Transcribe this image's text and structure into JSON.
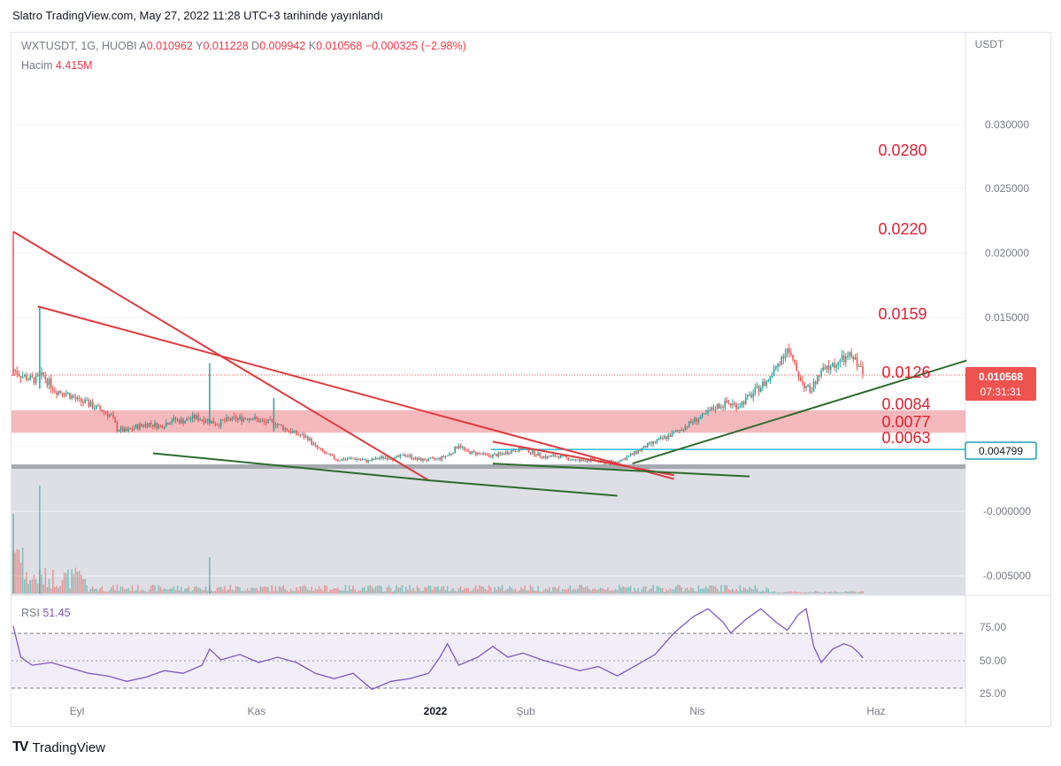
{
  "header": {
    "published_line": "Slatro TradingView.com, May 27, 2022 11:28 UTC+3 tarihinde yayınlandı"
  },
  "legend": {
    "symbol": "WXTUSDT, 1G, HUOBI",
    "open_key": "A",
    "open": "0.010962",
    "high_key": "Y",
    "high": "0.011228",
    "low_key": "D",
    "low": "0.009942",
    "close_key": "K",
    "close": "0.010568",
    "change": "−0.000325 (−2.98%)",
    "volume_label": "Hacim",
    "volume_value": "4.415M"
  },
  "rsi_legend": {
    "label": "RSI",
    "value": "51.45"
  },
  "brand": {
    "name": "TradingView"
  },
  "colors": {
    "up": "#26a69a",
    "down": "#ef5350",
    "trend_red": "#e03a3e",
    "trend_green": "#2e6b2e",
    "rsi": "#7e57c2",
    "zone": "#f0a1a6",
    "cyan_line": "#26b6d0",
    "gray_band": "#a7a9b0",
    "price_tag": "#ef5350",
    "cyan_tag": "#1b9fb5",
    "annotation": "#e0202f"
  },
  "chart_data": [
    {
      "type": "candlestick",
      "title": "WXTUSDT, 1G, HUOBI",
      "ylabel": "USDT",
      "ylim": [
        -0.0065,
        0.035
      ],
      "y_ticks": [
        "0.030000",
        "0.025000",
        "0.020000",
        "0.015000",
        "0.010000",
        "0.005000",
        "-0.000000",
        "-0.005000"
      ],
      "x_ticks": [
        "Eyl",
        "Kas",
        "2022",
        "Şub",
        "Nis",
        "Haz"
      ],
      "last_price_label": "0.010568",
      "countdown_label": "07:31:31",
      "cyan_level_label": "0.004799",
      "cyan_level": 0.004799,
      "support_level": 0.0035,
      "zone": [
        0.0063,
        0.0077
      ],
      "annotations": [
        "0.0280",
        "0.0220",
        "0.0159",
        "0.0126",
        "0.0084",
        "0.0077",
        "0.0063"
      ],
      "close_path": [
        {
          "d": 0,
          "c": 0.011
        },
        {
          "d": 5,
          "c": 0.0105
        },
        {
          "d": 10,
          "c": 0.0102
        },
        {
          "d": 16,
          "c": 0.0105
        },
        {
          "d": 22,
          "c": 0.0094
        },
        {
          "d": 28,
          "c": 0.0092
        },
        {
          "d": 34,
          "c": 0.0086
        },
        {
          "d": 40,
          "c": 0.0083
        },
        {
          "d": 46,
          "c": 0.0079
        },
        {
          "d": 52,
          "c": 0.0074
        },
        {
          "d": 55,
          "c": 0.0064
        },
        {
          "d": 60,
          "c": 0.0062
        },
        {
          "d": 66,
          "c": 0.0066
        },
        {
          "d": 72,
          "c": 0.0068
        },
        {
          "d": 78,
          "c": 0.0066
        },
        {
          "d": 84,
          "c": 0.0071
        },
        {
          "d": 90,
          "c": 0.007
        },
        {
          "d": 96,
          "c": 0.0073
        },
        {
          "d": 102,
          "c": 0.0071
        },
        {
          "d": 108,
          "c": 0.0068
        },
        {
          "d": 114,
          "c": 0.0071
        },
        {
          "d": 120,
          "c": 0.0072
        },
        {
          "d": 126,
          "c": 0.0073
        },
        {
          "d": 132,
          "c": 0.0069
        },
        {
          "d": 138,
          "c": 0.0069
        },
        {
          "d": 144,
          "c": 0.0064
        },
        {
          "d": 150,
          "c": 0.006
        },
        {
          "d": 156,
          "c": 0.0057
        },
        {
          "d": 160,
          "c": 0.005
        },
        {
          "d": 166,
          "c": 0.0044
        },
        {
          "d": 172,
          "c": 0.004
        },
        {
          "d": 180,
          "c": 0.0041
        },
        {
          "d": 188,
          "c": 0.0039
        },
        {
          "d": 196,
          "c": 0.0042
        },
        {
          "d": 202,
          "c": 0.0041
        },
        {
          "d": 208,
          "c": 0.0044
        },
        {
          "d": 214,
          "c": 0.004
        },
        {
          "d": 220,
          "c": 0.004
        },
        {
          "d": 226,
          "c": 0.0041
        },
        {
          "d": 232,
          "c": 0.0045
        },
        {
          "d": 236,
          "c": 0.0052
        },
        {
          "d": 240,
          "c": 0.0046
        },
        {
          "d": 246,
          "c": 0.0045
        },
        {
          "d": 252,
          "c": 0.0043
        },
        {
          "d": 258,
          "c": 0.0044
        },
        {
          "d": 264,
          "c": 0.0047
        },
        {
          "d": 270,
          "c": 0.0049
        },
        {
          "d": 276,
          "c": 0.0045
        },
        {
          "d": 282,
          "c": 0.0042
        },
        {
          "d": 288,
          "c": 0.0043
        },
        {
          "d": 294,
          "c": 0.0041
        },
        {
          "d": 300,
          "c": 0.0039
        },
        {
          "d": 306,
          "c": 0.004
        },
        {
          "d": 312,
          "c": 0.0038
        },
        {
          "d": 318,
          "c": 0.0038
        },
        {
          "d": 324,
          "c": 0.0041
        },
        {
          "d": 330,
          "c": 0.0046
        },
        {
          "d": 336,
          "c": 0.0051
        },
        {
          "d": 342,
          "c": 0.0055
        },
        {
          "d": 348,
          "c": 0.0059
        },
        {
          "d": 354,
          "c": 0.0064
        },
        {
          "d": 360,
          "c": 0.007
        },
        {
          "d": 366,
          "c": 0.0074
        },
        {
          "d": 372,
          "c": 0.0081
        },
        {
          "d": 378,
          "c": 0.0084
        },
        {
          "d": 384,
          "c": 0.0082
        },
        {
          "d": 390,
          "c": 0.0089
        },
        {
          "d": 396,
          "c": 0.0097
        },
        {
          "d": 402,
          "c": 0.0105
        },
        {
          "d": 406,
          "c": 0.0118
        },
        {
          "d": 410,
          "c": 0.0126
        },
        {
          "d": 414,
          "c": 0.0112
        },
        {
          "d": 418,
          "c": 0.01
        },
        {
          "d": 422,
          "c": 0.0093
        },
        {
          "d": 428,
          "c": 0.0108
        },
        {
          "d": 434,
          "c": 0.0113
        },
        {
          "d": 440,
          "c": 0.0118
        },
        {
          "d": 444,
          "c": 0.012
        },
        {
          "d": 448,
          "c": 0.0114
        },
        {
          "d": 450,
          "c": 0.0106
        }
      ]
    },
    {
      "type": "line",
      "title": "RSI",
      "ylim": [
        20,
        100
      ],
      "y_ticks": [
        "75.00",
        "50.00",
        "25.00"
      ],
      "guide_levels": [
        70,
        50,
        30
      ],
      "points": [
        {
          "d": 0,
          "v": 75
        },
        {
          "d": 4,
          "v": 52
        },
        {
          "d": 10,
          "v": 46
        },
        {
          "d": 20,
          "v": 48
        },
        {
          "d": 30,
          "v": 44
        },
        {
          "d": 40,
          "v": 40
        },
        {
          "d": 50,
          "v": 38
        },
        {
          "d": 60,
          "v": 34
        },
        {
          "d": 70,
          "v": 37
        },
        {
          "d": 80,
          "v": 42
        },
        {
          "d": 90,
          "v": 40
        },
        {
          "d": 100,
          "v": 46
        },
        {
          "d": 104,
          "v": 58
        },
        {
          "d": 110,
          "v": 50
        },
        {
          "d": 120,
          "v": 54
        },
        {
          "d": 130,
          "v": 48
        },
        {
          "d": 140,
          "v": 52
        },
        {
          "d": 150,
          "v": 48
        },
        {
          "d": 160,
          "v": 40
        },
        {
          "d": 170,
          "v": 36
        },
        {
          "d": 180,
          "v": 40
        },
        {
          "d": 190,
          "v": 28
        },
        {
          "d": 200,
          "v": 34
        },
        {
          "d": 210,
          "v": 36
        },
        {
          "d": 220,
          "v": 40
        },
        {
          "d": 226,
          "v": 52
        },
        {
          "d": 230,
          "v": 62
        },
        {
          "d": 236,
          "v": 46
        },
        {
          "d": 246,
          "v": 52
        },
        {
          "d": 254,
          "v": 60
        },
        {
          "d": 262,
          "v": 52
        },
        {
          "d": 270,
          "v": 55
        },
        {
          "d": 280,
          "v": 50
        },
        {
          "d": 290,
          "v": 46
        },
        {
          "d": 300,
          "v": 42
        },
        {
          "d": 310,
          "v": 45
        },
        {
          "d": 320,
          "v": 38
        },
        {
          "d": 330,
          "v": 46
        },
        {
          "d": 340,
          "v": 54
        },
        {
          "d": 350,
          "v": 70
        },
        {
          "d": 360,
          "v": 82
        },
        {
          "d": 368,
          "v": 88
        },
        {
          "d": 376,
          "v": 78
        },
        {
          "d": 380,
          "v": 70
        },
        {
          "d": 388,
          "v": 80
        },
        {
          "d": 396,
          "v": 88
        },
        {
          "d": 404,
          "v": 78
        },
        {
          "d": 410,
          "v": 72
        },
        {
          "d": 416,
          "v": 84
        },
        {
          "d": 420,
          "v": 88
        },
        {
          "d": 424,
          "v": 60
        },
        {
          "d": 428,
          "v": 48
        },
        {
          "d": 434,
          "v": 58
        },
        {
          "d": 440,
          "v": 62
        },
        {
          "d": 444,
          "v": 60
        },
        {
          "d": 448,
          "v": 55
        },
        {
          "d": 450,
          "v": 51.45
        }
      ]
    }
  ]
}
